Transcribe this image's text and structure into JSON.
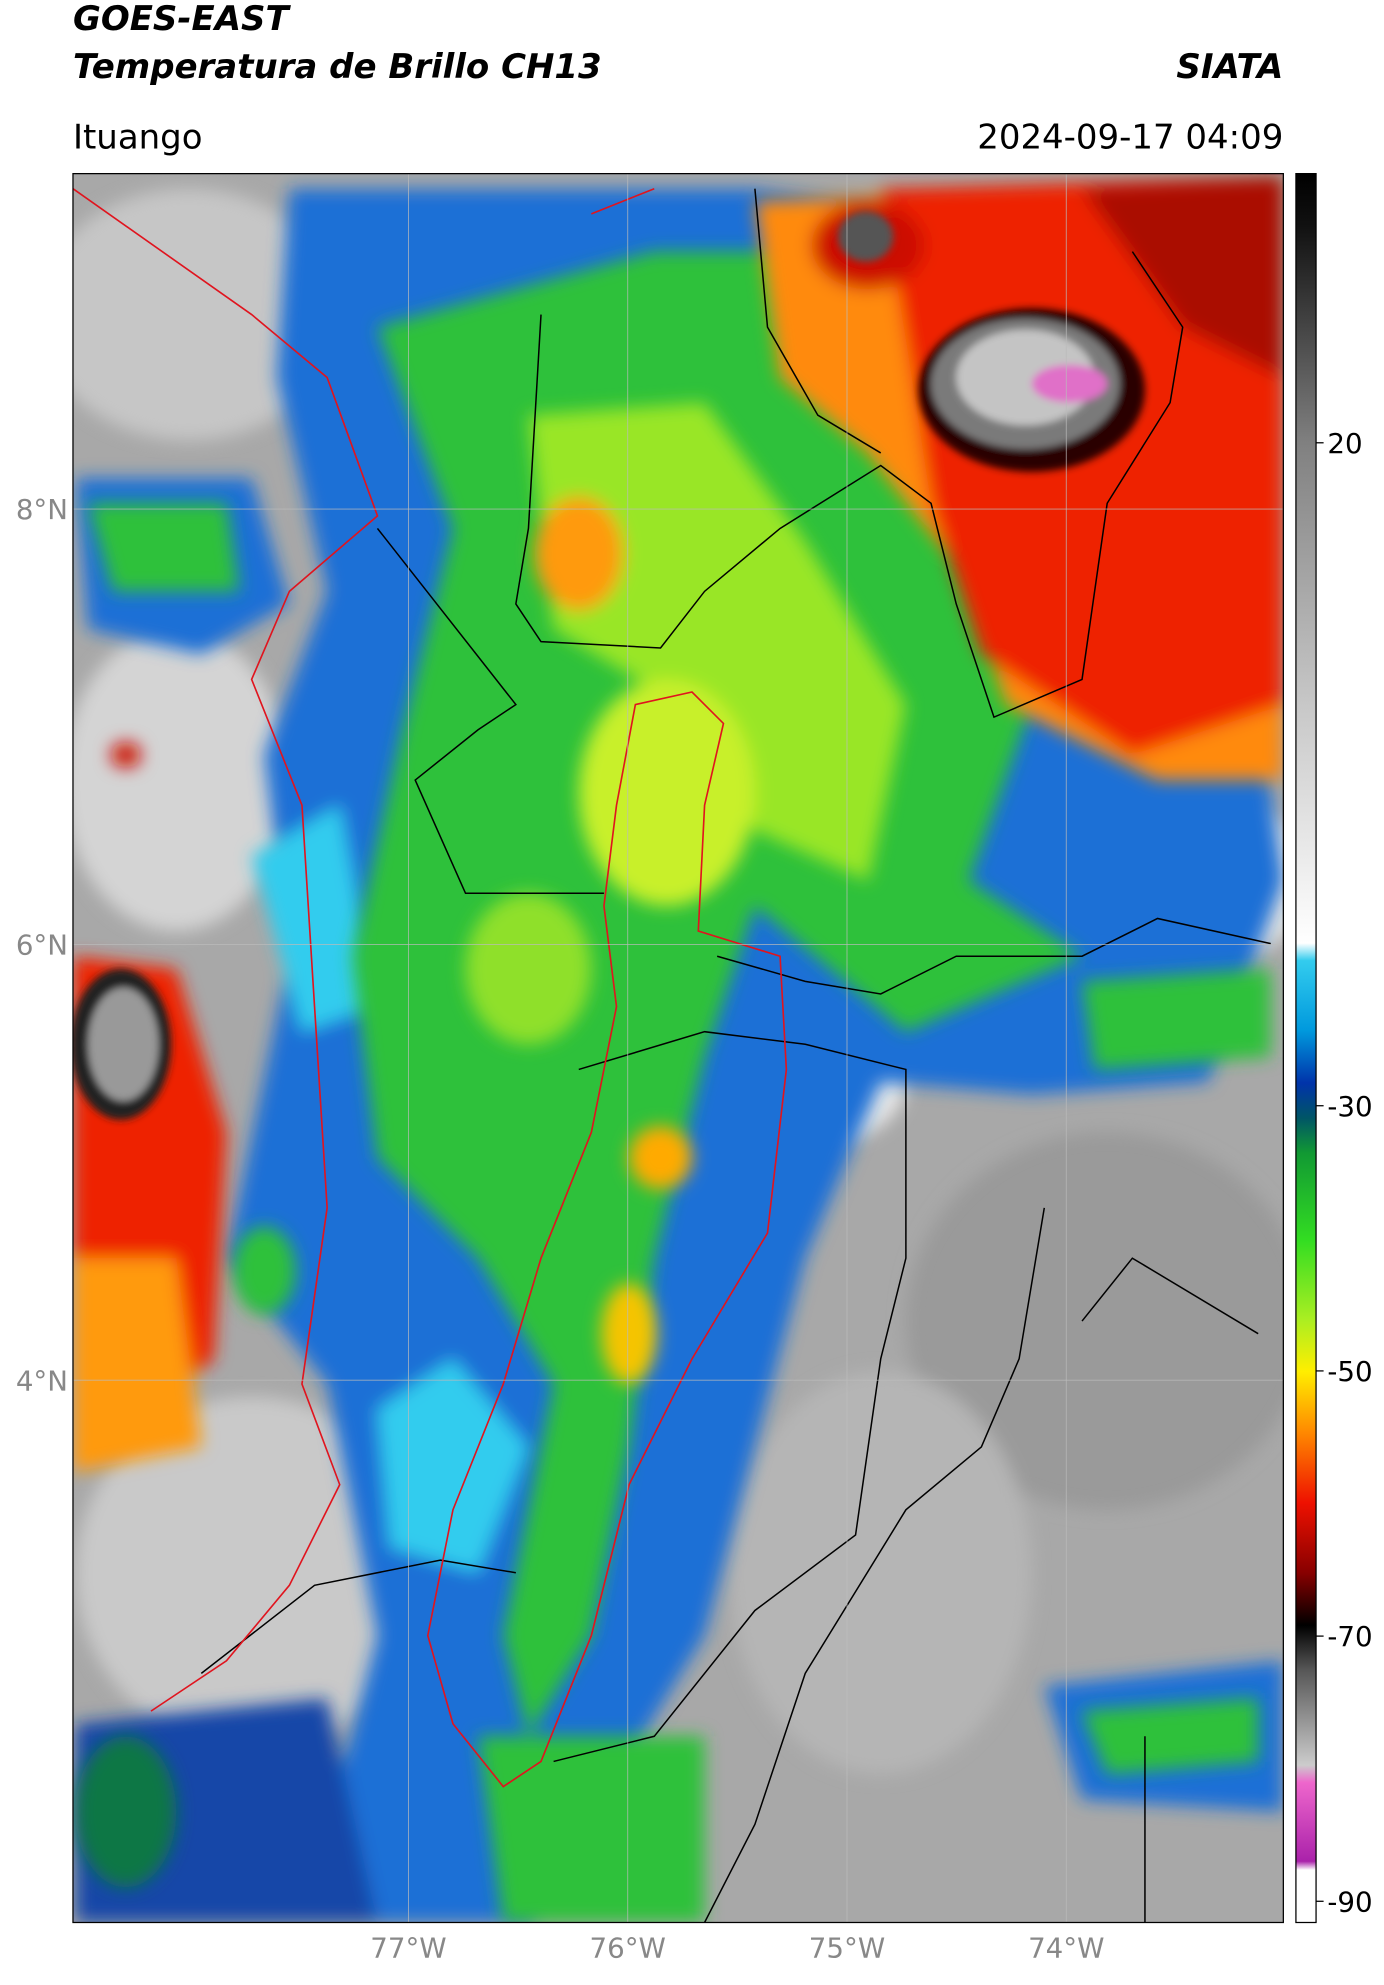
{
  "chart_data": {
    "type": "map",
    "title": "GOES-EAST",
    "subtitle": "Temperatura de Brillo CH13",
    "source": "SIATA",
    "location": "Ituango",
    "datetime": "2024-09-17 04:09",
    "xlim": [
      -78.53,
      -73.01
    ],
    "ylim": [
      1.51,
      9.54
    ],
    "xticks": [
      {
        "value": -77,
        "label": "77°W"
      },
      {
        "value": -76,
        "label": "76°W"
      },
      {
        "value": -75,
        "label": "75°W"
      },
      {
        "value": -74,
        "label": "74°W"
      }
    ],
    "yticks": [
      {
        "value": 4,
        "label": "4°N"
      },
      {
        "value": 6,
        "label": "6°N"
      },
      {
        "value": 8,
        "label": "8°N"
      }
    ],
    "grid": true,
    "colorbar": {
      "lim": [
        -91.6,
        40.3
      ],
      "ticks": [
        -90,
        -70,
        -50,
        -30,
        20
      ]
    }
  }
}
